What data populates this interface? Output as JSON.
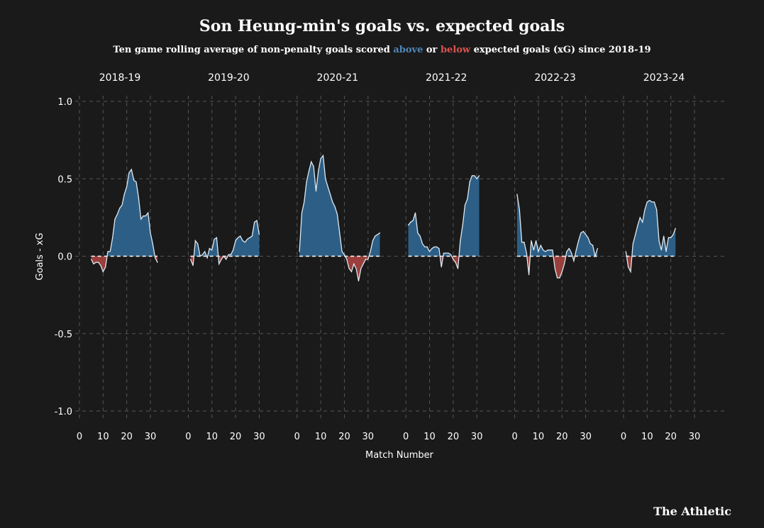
{
  "chart_data": {
    "type": "area",
    "title": "Son Heung-min's goals vs. expected goals",
    "subtitle": {
      "prefix": "Ten game rolling average of non-penalty goals scored",
      "above": "above",
      "connector": "or",
      "below": "below",
      "suffix": "expected goals (xG) since 2018-19"
    },
    "xlabel": "Match Number",
    "ylabel": "Goals - xG",
    "ylim": [
      -1.1,
      1.05
    ],
    "yticks": [
      1.0,
      0.5,
      0.0,
      -0.5,
      -1.0
    ],
    "ytick_labels": [
      "1.0",
      "0.5",
      "0.0",
      "-0.5",
      "-1.0"
    ],
    "xlim": [
      0,
      33
    ],
    "xticks": [
      0,
      10,
      20,
      30
    ],
    "xtick_labels": [
      "0",
      "10",
      "20",
      "30"
    ],
    "grid": true,
    "colors": {
      "above": "#2d5f86",
      "below": "#9a3f3b",
      "line": "#dfe9f2",
      "zero": "#ffffff",
      "grid": "#555555"
    },
    "panels": [
      {
        "season": "2018-19",
        "points": [
          [
            5,
            -0.02
          ],
          [
            6,
            -0.05
          ],
          [
            7,
            -0.04
          ],
          [
            8,
            -0.04
          ],
          [
            9,
            -0.06
          ],
          [
            10,
            -0.1
          ],
          [
            11,
            -0.07
          ],
          [
            12,
            0.03
          ],
          [
            13,
            0.03
          ],
          [
            14,
            0.12
          ],
          [
            15,
            0.24
          ],
          [
            16,
            0.27
          ],
          [
            17,
            0.31
          ],
          [
            18,
            0.33
          ],
          [
            19,
            0.4
          ],
          [
            20,
            0.45
          ],
          [
            21,
            0.54
          ],
          [
            22,
            0.56
          ],
          [
            23,
            0.49
          ],
          [
            24,
            0.48
          ],
          [
            25,
            0.38
          ],
          [
            26,
            0.24
          ],
          [
            27,
            0.26
          ],
          [
            28,
            0.26
          ],
          [
            29,
            0.28
          ],
          [
            30,
            0.15
          ],
          [
            31,
            0.08
          ],
          [
            32,
            -0.01
          ],
          [
            33,
            -0.04
          ]
        ]
      },
      {
        "season": "2019-20",
        "points": [
          [
            1,
            -0.02
          ],
          [
            2,
            -0.06
          ],
          [
            3,
            0.1
          ],
          [
            4,
            0.08
          ],
          [
            5,
            0.0
          ],
          [
            6,
            0.01
          ],
          [
            7,
            0.03
          ],
          [
            8,
            -0.01
          ],
          [
            9,
            0.05
          ],
          [
            10,
            0.04
          ],
          [
            11,
            0.11
          ],
          [
            12,
            0.12
          ],
          [
            13,
            -0.05
          ],
          [
            14,
            -0.02
          ],
          [
            15,
            0.0
          ],
          [
            16,
            -0.02
          ],
          [
            17,
            0.01
          ],
          [
            18,
            0.01
          ],
          [
            19,
            0.04
          ],
          [
            20,
            0.1
          ],
          [
            21,
            0.12
          ],
          [
            22,
            0.13
          ],
          [
            23,
            0.1
          ],
          [
            24,
            0.09
          ],
          [
            25,
            0.11
          ],
          [
            26,
            0.12
          ],
          [
            27,
            0.13
          ],
          [
            28,
            0.22
          ],
          [
            29,
            0.23
          ],
          [
            30,
            0.14
          ]
        ]
      },
      {
        "season": "2020-21",
        "points": [
          [
            1,
            0.03
          ],
          [
            2,
            0.28
          ],
          [
            3,
            0.35
          ],
          [
            4,
            0.48
          ],
          [
            5,
            0.55
          ],
          [
            6,
            0.61
          ],
          [
            7,
            0.58
          ],
          [
            8,
            0.42
          ],
          [
            9,
            0.55
          ],
          [
            10,
            0.63
          ],
          [
            11,
            0.65
          ],
          [
            12,
            0.5
          ],
          [
            13,
            0.45
          ],
          [
            14,
            0.4
          ],
          [
            15,
            0.35
          ],
          [
            16,
            0.32
          ],
          [
            17,
            0.27
          ],
          [
            18,
            0.15
          ],
          [
            19,
            0.03
          ],
          [
            20,
            0.01
          ],
          [
            21,
            -0.02
          ],
          [
            22,
            -0.08
          ],
          [
            23,
            -0.1
          ],
          [
            24,
            -0.05
          ],
          [
            25,
            -0.08
          ],
          [
            26,
            -0.16
          ],
          [
            27,
            -0.08
          ],
          [
            28,
            -0.05
          ],
          [
            29,
            -0.02
          ],
          [
            30,
            -0.02
          ],
          [
            31,
            0.03
          ],
          [
            32,
            0.1
          ],
          [
            33,
            0.13
          ],
          [
            34,
            0.14
          ],
          [
            35,
            0.15
          ]
        ]
      },
      {
        "season": "2021-22",
        "points": [
          [
            1,
            0.2
          ],
          [
            2,
            0.22
          ],
          [
            3,
            0.23
          ],
          [
            4,
            0.28
          ],
          [
            5,
            0.15
          ],
          [
            6,
            0.13
          ],
          [
            7,
            0.08
          ],
          [
            8,
            0.06
          ],
          [
            9,
            0.06
          ],
          [
            10,
            0.03
          ],
          [
            11,
            0.05
          ],
          [
            12,
            0.06
          ],
          [
            13,
            0.06
          ],
          [
            14,
            0.05
          ],
          [
            15,
            -0.07
          ],
          [
            16,
            0.02
          ],
          [
            17,
            0.02
          ],
          [
            18,
            0.02
          ],
          [
            19,
            0.01
          ],
          [
            20,
            -0.02
          ],
          [
            21,
            -0.04
          ],
          [
            22,
            -0.08
          ],
          [
            23,
            0.1
          ],
          [
            24,
            0.2
          ],
          [
            25,
            0.33
          ],
          [
            26,
            0.37
          ],
          [
            27,
            0.48
          ],
          [
            28,
            0.52
          ],
          [
            29,
            0.52
          ],
          [
            30,
            0.5
          ],
          [
            31,
            0.52
          ]
        ]
      },
      {
        "season": "2022-23",
        "points": [
          [
            1,
            0.4
          ],
          [
            2,
            0.3
          ],
          [
            3,
            0.09
          ],
          [
            4,
            0.09
          ],
          [
            5,
            0.02
          ],
          [
            6,
            -0.12
          ],
          [
            7,
            0.1
          ],
          [
            8,
            0.04
          ],
          [
            9,
            0.1
          ],
          [
            10,
            0.03
          ],
          [
            11,
            0.07
          ],
          [
            12,
            0.04
          ],
          [
            13,
            0.03
          ],
          [
            14,
            0.04
          ],
          [
            15,
            0.04
          ],
          [
            16,
            0.04
          ],
          [
            17,
            -0.08
          ],
          [
            18,
            -0.14
          ],
          [
            19,
            -0.14
          ],
          [
            20,
            -0.1
          ],
          [
            21,
            -0.05
          ],
          [
            22,
            0.03
          ],
          [
            23,
            0.05
          ],
          [
            24,
            0.02
          ],
          [
            25,
            -0.03
          ],
          [
            26,
            0.04
          ],
          [
            27,
            0.1
          ],
          [
            28,
            0.15
          ],
          [
            29,
            0.16
          ],
          [
            30,
            0.14
          ],
          [
            31,
            0.12
          ],
          [
            32,
            0.08
          ],
          [
            33,
            0.07
          ],
          [
            34,
            0.0
          ],
          [
            35,
            0.05
          ]
        ]
      },
      {
        "season": "2023-24",
        "points": [
          [
            1,
            0.03
          ],
          [
            2,
            -0.07
          ],
          [
            3,
            -0.1
          ],
          [
            4,
            0.08
          ],
          [
            5,
            0.14
          ],
          [
            6,
            0.2
          ],
          [
            7,
            0.25
          ],
          [
            8,
            0.22
          ],
          [
            9,
            0.3
          ],
          [
            10,
            0.35
          ],
          [
            11,
            0.36
          ],
          [
            12,
            0.35
          ],
          [
            13,
            0.35
          ],
          [
            14,
            0.3
          ],
          [
            15,
            0.1
          ],
          [
            16,
            0.04
          ],
          [
            17,
            0.13
          ],
          [
            18,
            0.03
          ],
          [
            19,
            0.12
          ],
          [
            20,
            0.12
          ],
          [
            21,
            0.14
          ],
          [
            22,
            0.18
          ]
        ]
      }
    ]
  },
  "brand": {
    "logo": "The Athletic"
  }
}
